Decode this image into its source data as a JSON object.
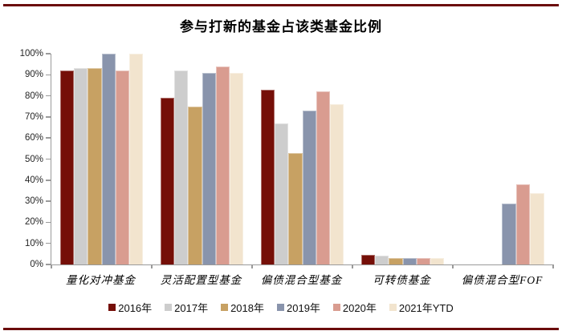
{
  "page": {
    "accent_color": "#6b0c0c",
    "title": "参与打新的基金占该类基金比例"
  },
  "chart_data": {
    "type": "bar",
    "title": "参与打新的基金占该类基金比例",
    "categories": [
      "量化对冲基金",
      "灵活配置型基金",
      "偏债混合型基金",
      "可转债基金",
      "偏债混合型FOF"
    ],
    "series": [
      {
        "name": "2016年",
        "color": "#750f08",
        "values": [
          92,
          79,
          83,
          4.5,
          0
        ]
      },
      {
        "name": "2017年",
        "color": "#cdcdcd",
        "values": [
          93,
          92,
          67,
          4,
          0
        ]
      },
      {
        "name": "2018年",
        "color": "#c7a163",
        "values": [
          93,
          75,
          53,
          3,
          0
        ]
      },
      {
        "name": "2019年",
        "color": "#8994ac",
        "values": [
          100,
          91,
          73,
          3,
          29
        ]
      },
      {
        "name": "2020年",
        "color": "#d99c90",
        "values": [
          92,
          94,
          82,
          3,
          38
        ]
      },
      {
        "name": "2021年YTD",
        "color": "#f2e4ce",
        "values": [
          100,
          91,
          76,
          3,
          34
        ]
      }
    ],
    "ylabel": "",
    "xlabel": "",
    "ylim": [
      0,
      100
    ],
    "ytick_step": 10,
    "ytick_labels": [
      "0%",
      "10%",
      "20%",
      "30%",
      "40%",
      "50%",
      "60%",
      "70%",
      "80%",
      "90%",
      "100%"
    ],
    "grid": false,
    "legend_position": "bottom"
  }
}
